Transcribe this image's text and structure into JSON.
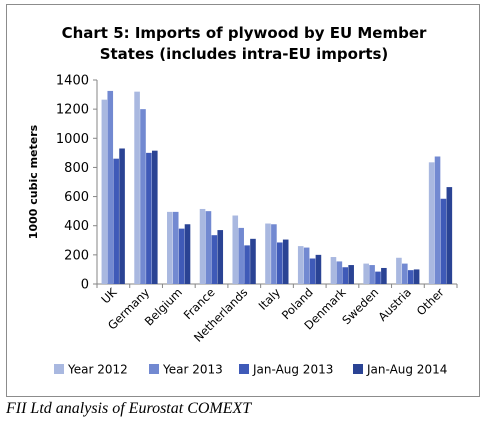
{
  "chart_data": {
    "type": "bar",
    "title": "Chart 5: Imports of plywood by EU Member\nStates (includes intra-EU imports)",
    "xlabel": "",
    "ylabel": "1000 cubic meters",
    "ylim": [
      0,
      1400
    ],
    "yticks": [
      0,
      200,
      400,
      600,
      800,
      1000,
      1200,
      1400
    ],
    "grid": false,
    "legend_position": "bottom",
    "categories": [
      "UK",
      "Germany",
      "Belgium",
      "France",
      "Netherlands",
      "Italy",
      "Poland",
      "Denmark",
      "Sweden",
      "Austria",
      "Other"
    ],
    "series": [
      {
        "name": "Year 2012",
        "color": "#a9b8e0",
        "values": [
          1265,
          1320,
          495,
          515,
          470,
          415,
          260,
          185,
          140,
          180,
          835
        ]
      },
      {
        "name": "Year 2013",
        "color": "#7289d1",
        "values": [
          1325,
          1200,
          495,
          500,
          385,
          410,
          250,
          155,
          130,
          140,
          875
        ]
      },
      {
        "name": "Jan-Aug 2013",
        "color": "#3f5ab8",
        "values": [
          860,
          900,
          380,
          335,
          265,
          285,
          175,
          115,
          85,
          95,
          585
        ]
      },
      {
        "name": "Jan-Aug 2014",
        "color": "#2a4394",
        "values": [
          930,
          915,
          410,
          370,
          310,
          305,
          200,
          130,
          110,
          100,
          665
        ]
      }
    ]
  },
  "source": "FII Ltd analysis of Eurostat COMEXT"
}
